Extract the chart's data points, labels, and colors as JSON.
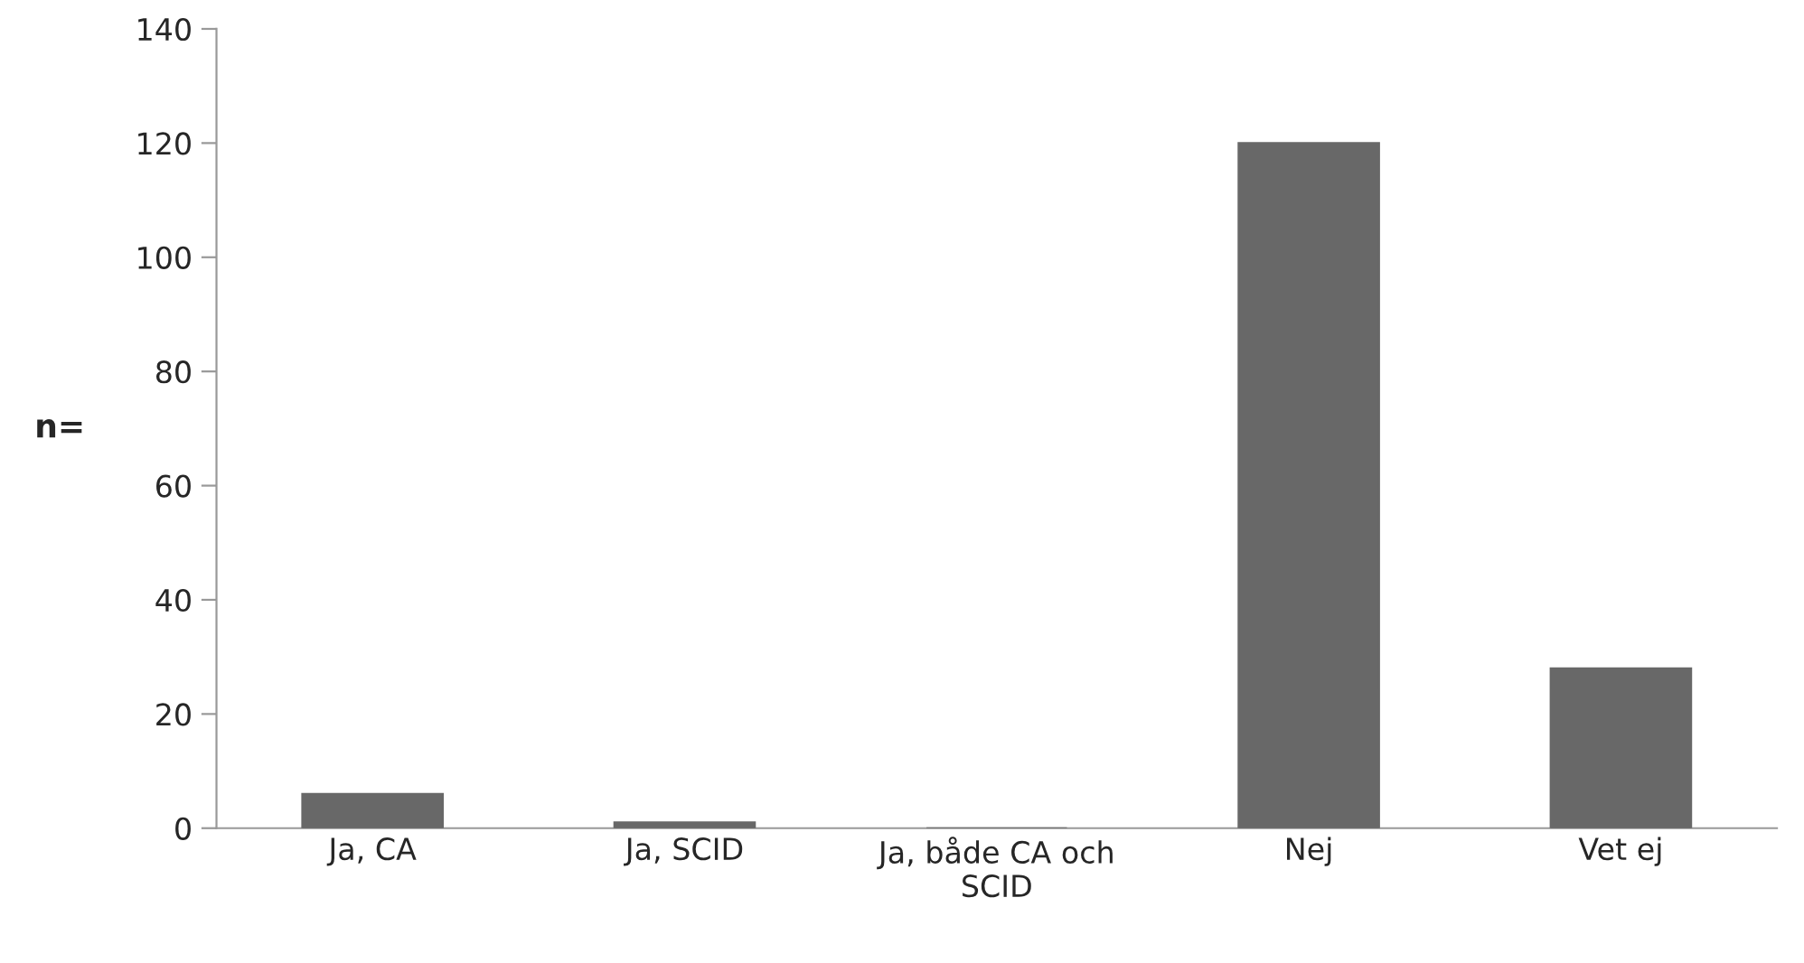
{
  "chart_data": {
    "type": "bar",
    "ylabel": "n=",
    "categories": [
      "Ja, CA",
      "Ja, SCID",
      "Ja, både CA och\nSCID",
      "Nej",
      "Vet ej"
    ],
    "values": [
      6,
      1,
      0,
      120,
      28
    ],
    "color": "#686868",
    "ylim": [
      0,
      140
    ],
    "yticks": [
      0,
      20,
      40,
      60,
      80,
      100,
      120,
      140
    ],
    "grid": false,
    "legend": false
  }
}
